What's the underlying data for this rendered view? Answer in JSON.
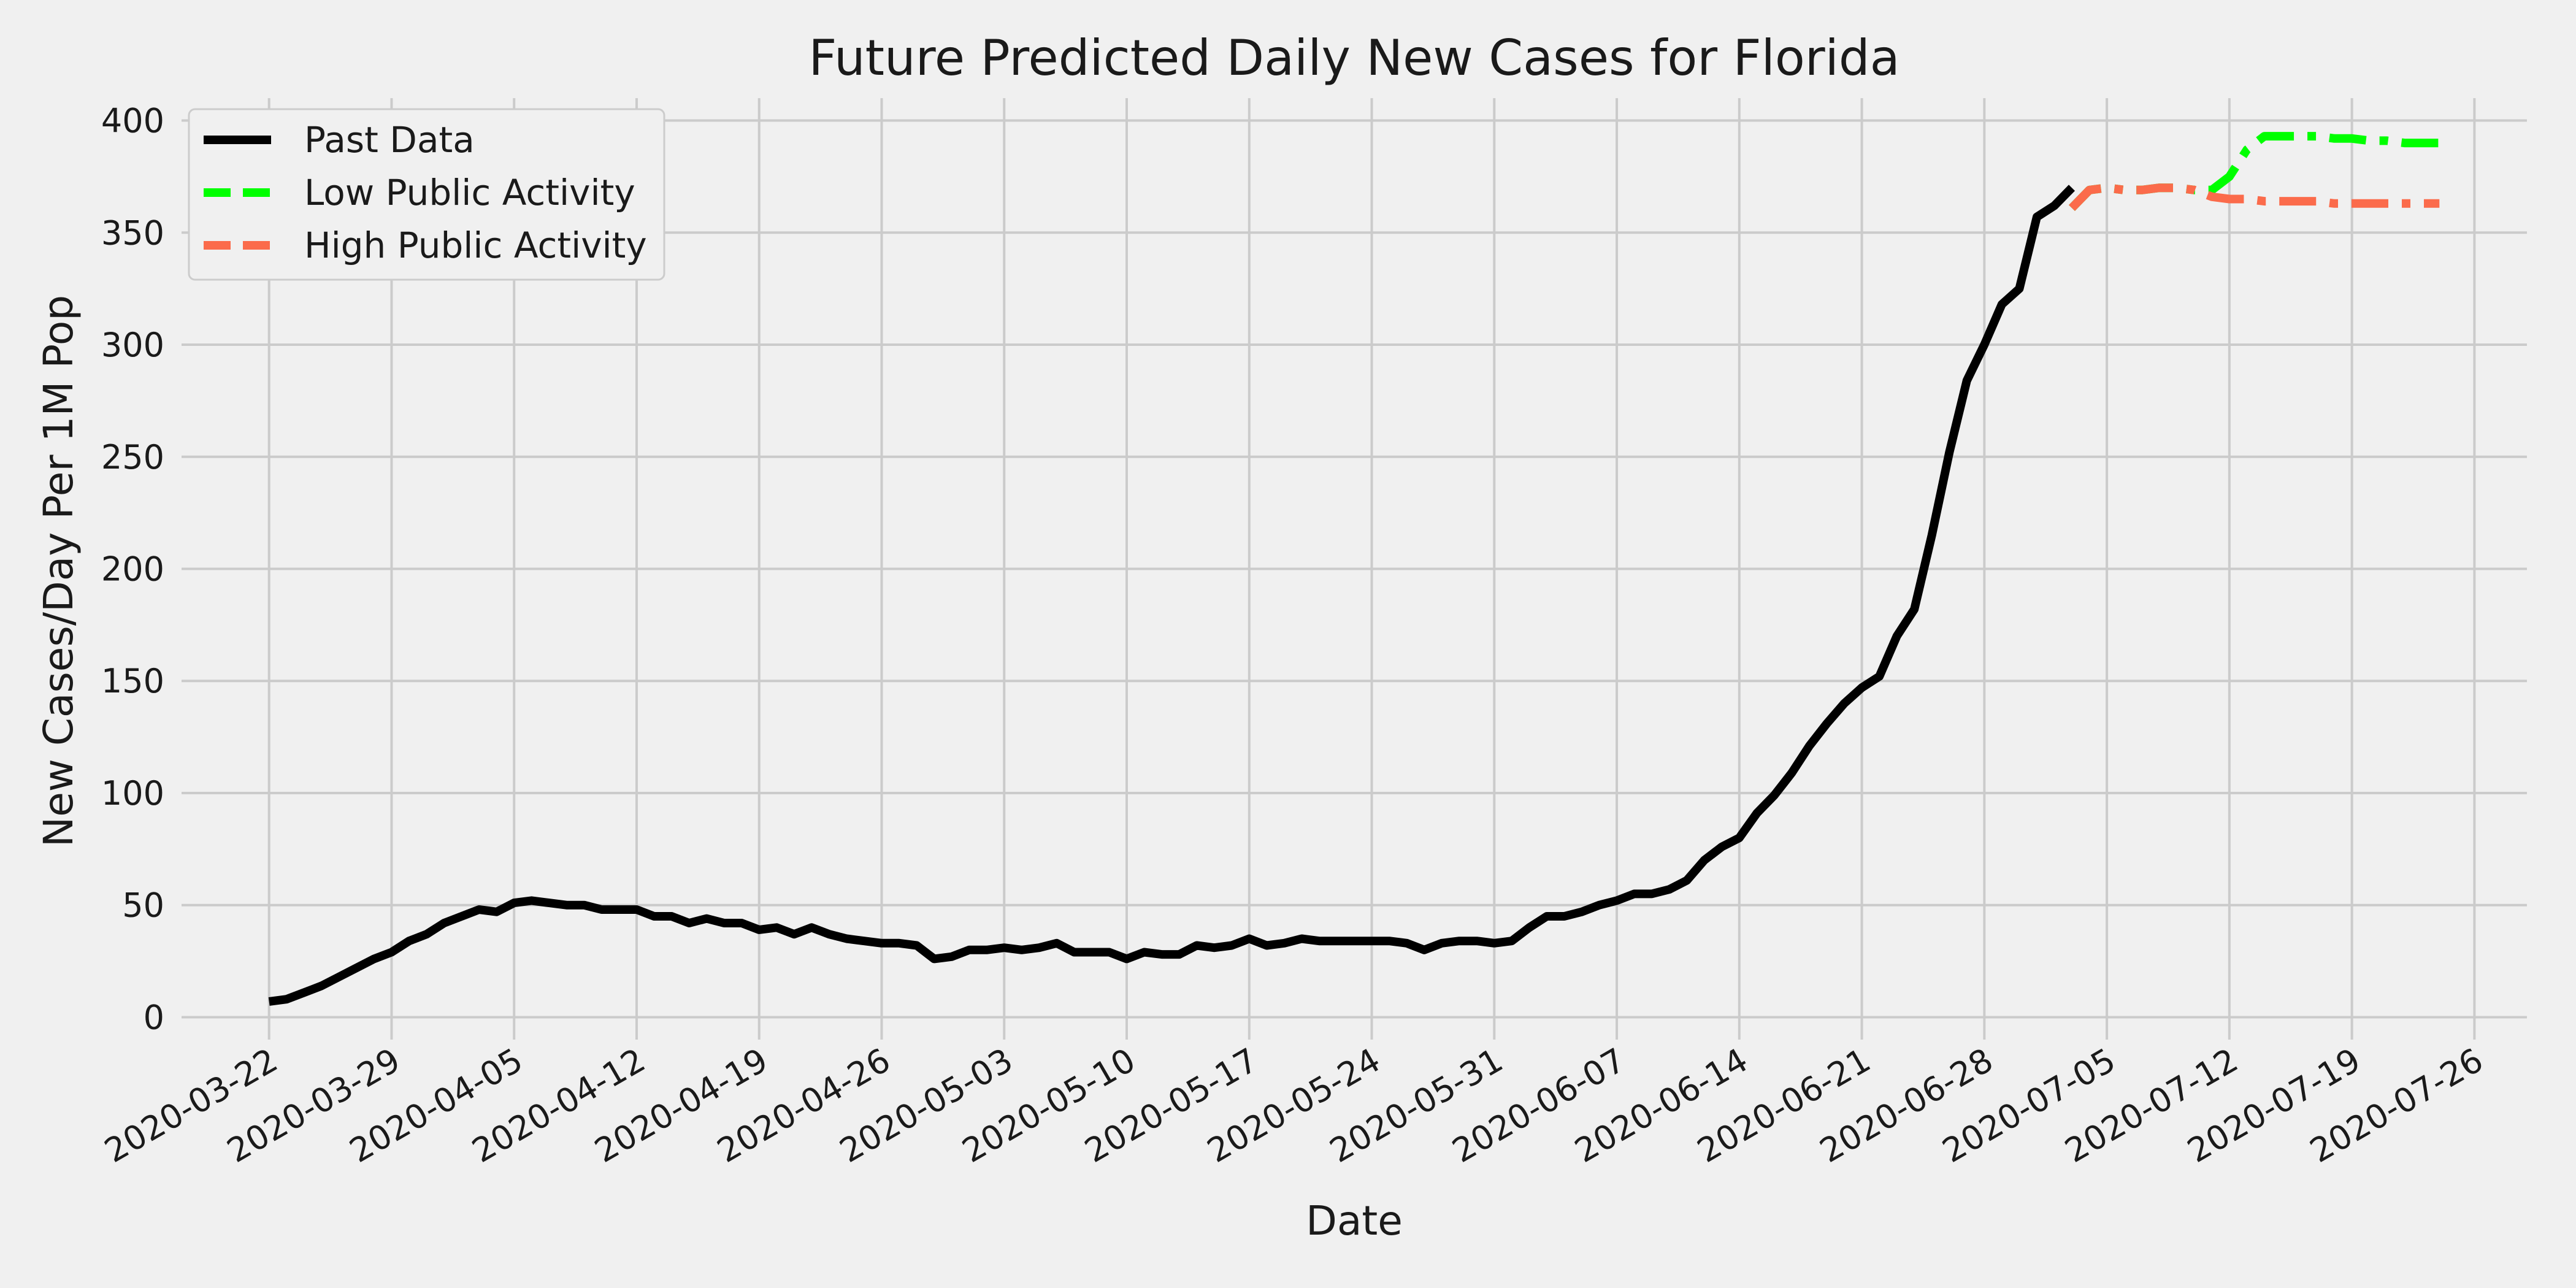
{
  "chart_data": {
    "type": "line",
    "title": "Future Predicted Daily New Cases for Florida",
    "xlabel": "Date",
    "ylabel": "New Cases/Day Per 1M Pop",
    "ylim": [
      -10,
      410
    ],
    "xlim": [
      "2020-03-17",
      "2020-07-29"
    ],
    "yticks": [
      0,
      50,
      100,
      150,
      200,
      250,
      300,
      350,
      400
    ],
    "xticks": [
      "2020-03-22",
      "2020-03-29",
      "2020-04-05",
      "2020-04-12",
      "2020-04-19",
      "2020-04-26",
      "2020-05-03",
      "2020-05-10",
      "2020-05-17",
      "2020-05-24",
      "2020-05-31",
      "2020-06-07",
      "2020-06-14",
      "2020-06-21",
      "2020-06-28",
      "2020-07-05",
      "2020-07-12",
      "2020-07-19",
      "2020-07-26"
    ],
    "grid": true,
    "legend_position": "top-left",
    "series": [
      {
        "name": "Past Data",
        "color": "#000000",
        "dash": "solid",
        "x": [
          "2020-03-22",
          "2020-03-23",
          "2020-03-24",
          "2020-03-25",
          "2020-03-26",
          "2020-03-27",
          "2020-03-28",
          "2020-03-29",
          "2020-03-30",
          "2020-03-31",
          "2020-04-01",
          "2020-04-02",
          "2020-04-03",
          "2020-04-04",
          "2020-04-05",
          "2020-04-06",
          "2020-04-07",
          "2020-04-08",
          "2020-04-09",
          "2020-04-10",
          "2020-04-11",
          "2020-04-12",
          "2020-04-13",
          "2020-04-14",
          "2020-04-15",
          "2020-04-16",
          "2020-04-17",
          "2020-04-18",
          "2020-04-19",
          "2020-04-20",
          "2020-04-21",
          "2020-04-22",
          "2020-04-23",
          "2020-04-24",
          "2020-04-25",
          "2020-04-26",
          "2020-04-27",
          "2020-04-28",
          "2020-04-29",
          "2020-04-30",
          "2020-05-01",
          "2020-05-02",
          "2020-05-03",
          "2020-05-04",
          "2020-05-05",
          "2020-05-06",
          "2020-05-07",
          "2020-05-08",
          "2020-05-09",
          "2020-05-10",
          "2020-05-11",
          "2020-05-12",
          "2020-05-13",
          "2020-05-14",
          "2020-05-15",
          "2020-05-16",
          "2020-05-17",
          "2020-05-18",
          "2020-05-19",
          "2020-05-20",
          "2020-05-21",
          "2020-05-22",
          "2020-05-23",
          "2020-05-24",
          "2020-05-25",
          "2020-05-26",
          "2020-05-27",
          "2020-05-28",
          "2020-05-29",
          "2020-05-30",
          "2020-05-31",
          "2020-06-01",
          "2020-06-02",
          "2020-06-03",
          "2020-06-04",
          "2020-06-05",
          "2020-06-06",
          "2020-06-07",
          "2020-06-08",
          "2020-06-09",
          "2020-06-10",
          "2020-06-11",
          "2020-06-12",
          "2020-06-13",
          "2020-06-14",
          "2020-06-15",
          "2020-06-16",
          "2020-06-17",
          "2020-06-18",
          "2020-06-19",
          "2020-06-20",
          "2020-06-21",
          "2020-06-22",
          "2020-06-23",
          "2020-06-24",
          "2020-06-25",
          "2020-06-26",
          "2020-06-27",
          "2020-06-28",
          "2020-06-29",
          "2020-06-30",
          "2020-07-01",
          "2020-07-02",
          "2020-07-03"
        ],
        "y": [
          7,
          8,
          11,
          14,
          18,
          22,
          26,
          29,
          34,
          37,
          42,
          45,
          48,
          47,
          51,
          52,
          51,
          50,
          50,
          48,
          48,
          48,
          45,
          45,
          42,
          44,
          42,
          42,
          39,
          40,
          37,
          40,
          37,
          35,
          34,
          33,
          33,
          32,
          26,
          27,
          30,
          30,
          31,
          30,
          31,
          33,
          29,
          29,
          29,
          26,
          29,
          28,
          28,
          32,
          31,
          32,
          35,
          32,
          33,
          35,
          34,
          34,
          34,
          34,
          34,
          33,
          30,
          33,
          34,
          34,
          33,
          34,
          40,
          45,
          45,
          47,
          50,
          52,
          55,
          55,
          57,
          61,
          70,
          76,
          80,
          91,
          99,
          109,
          121,
          131,
          140,
          147,
          152,
          170,
          182,
          215,
          252,
          284,
          300,
          318,
          325,
          357,
          362,
          370
        ]
      },
      {
        "name": "Low Public Activity",
        "color": "#00ff00",
        "dash": "dashdot",
        "x": [
          "2020-07-03",
          "2020-07-04",
          "2020-07-05",
          "2020-07-06",
          "2020-07-07",
          "2020-07-08",
          "2020-07-09",
          "2020-07-10",
          "2020-07-11",
          "2020-07-12",
          "2020-07-13",
          "2020-07-14",
          "2020-07-15",
          "2020-07-16",
          "2020-07-17",
          "2020-07-18",
          "2020-07-19",
          "2020-07-20",
          "2020-07-21",
          "2020-07-22",
          "2020-07-23",
          "2020-07-24"
        ],
        "y": [
          361,
          369,
          370,
          369,
          369,
          370,
          370,
          369,
          369,
          375,
          387,
          393,
          393,
          393,
          393,
          392,
          392,
          391,
          391,
          390,
          390,
          390
        ]
      },
      {
        "name": "High Public Activity",
        "color": "#fb6b4b",
        "dash": "dashdot",
        "x": [
          "2020-07-03",
          "2020-07-04",
          "2020-07-05",
          "2020-07-06",
          "2020-07-07",
          "2020-07-08",
          "2020-07-09",
          "2020-07-10",
          "2020-07-11",
          "2020-07-12",
          "2020-07-13",
          "2020-07-14",
          "2020-07-15",
          "2020-07-16",
          "2020-07-17",
          "2020-07-18",
          "2020-07-19",
          "2020-07-20",
          "2020-07-21",
          "2020-07-22",
          "2020-07-23",
          "2020-07-24"
        ],
        "y": [
          361,
          369,
          370,
          369,
          369,
          370,
          370,
          369,
          366,
          365,
          365,
          364,
          364,
          364,
          364,
          363,
          363,
          363,
          363,
          363,
          363,
          363
        ]
      }
    ]
  }
}
